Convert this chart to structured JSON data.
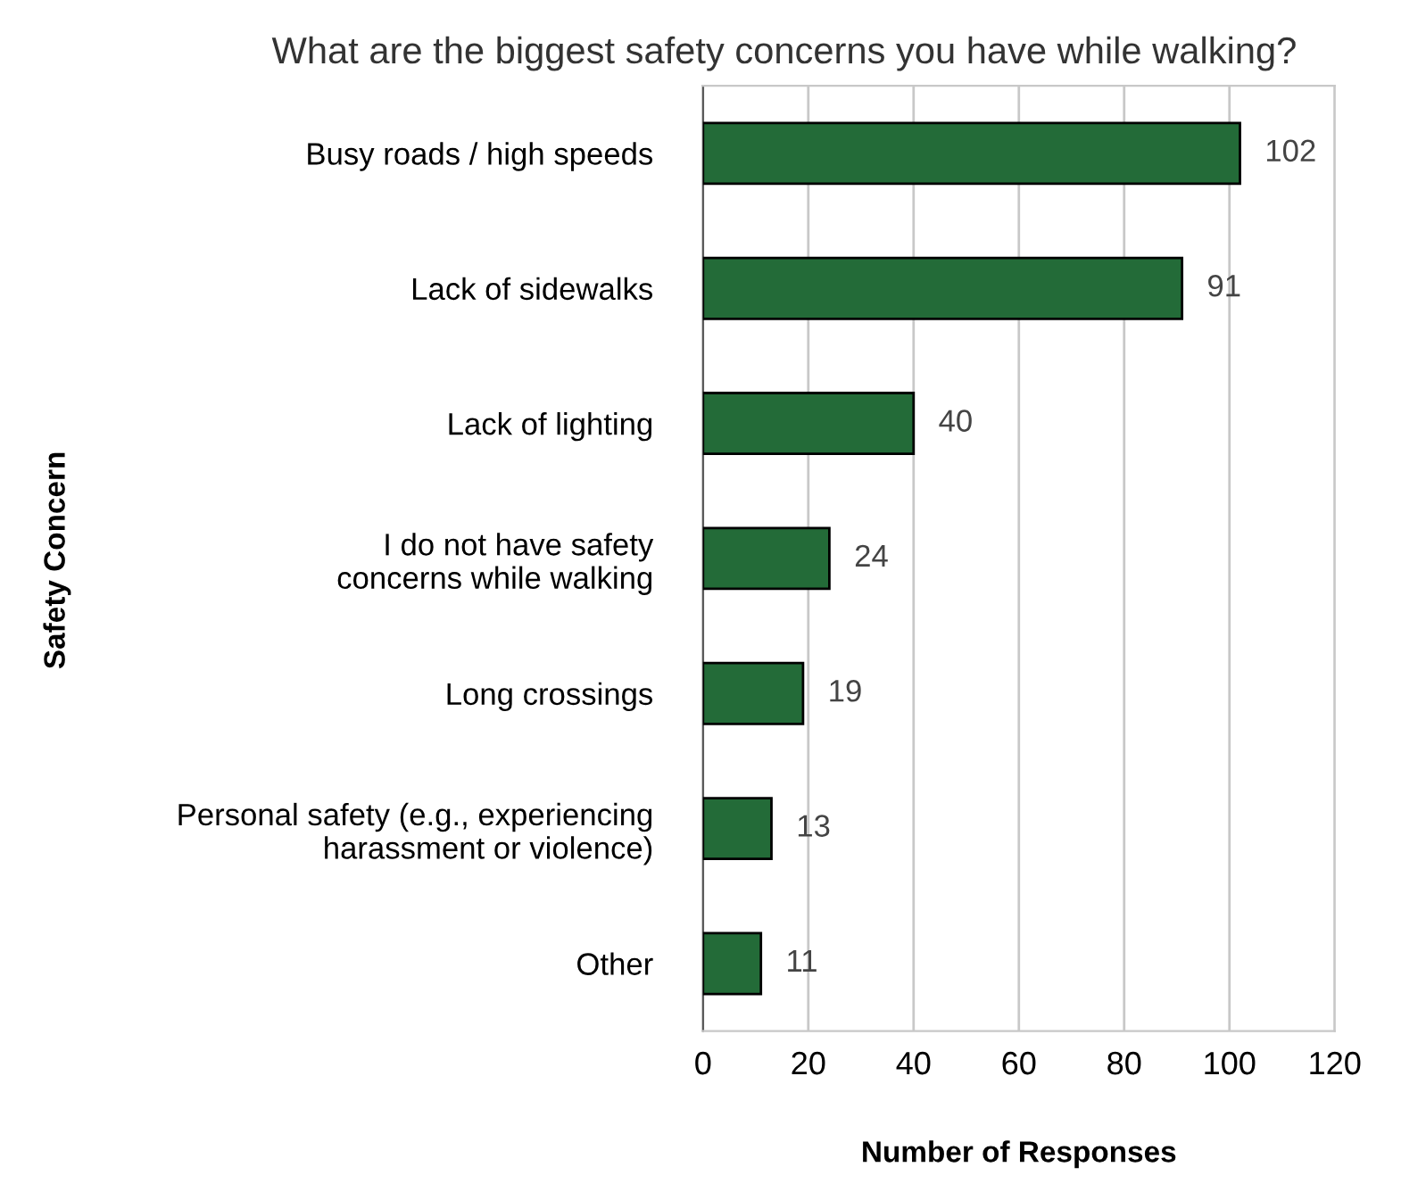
{
  "chart_data": {
    "type": "bar",
    "orientation": "horizontal",
    "title": "What are the biggest safety concerns you have while walking?",
    "xlabel": "Number of Responses",
    "ylabel": "Safety Concern",
    "categories": [
      "Busy roads / high speeds",
      "Lack of sidewalks",
      "Lack of lighting",
      "I do not have safety concerns while walking",
      "Long crossings",
      "Personal safety (e.g., experiencing harassment or violence)",
      "Other"
    ],
    "values": [
      102,
      91,
      40,
      24,
      19,
      13,
      11
    ],
    "color": "#236b38",
    "xlim": [
      0,
      120
    ],
    "xticks": [
      0,
      20,
      40,
      60,
      80,
      100,
      120
    ],
    "grid": "x",
    "data_labels": true,
    "legend": false
  }
}
